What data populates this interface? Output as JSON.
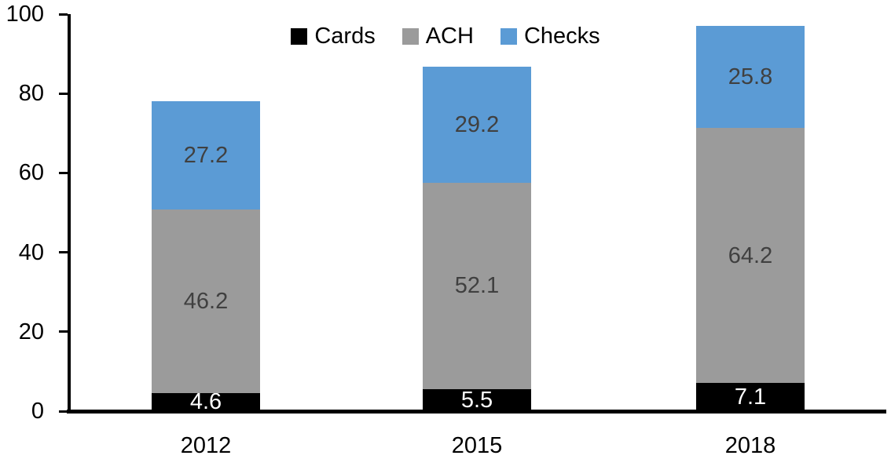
{
  "chart_data": {
    "type": "bar",
    "stacked": true,
    "title": "",
    "xlabel": "",
    "ylabel": "",
    "categories": [
      "2012",
      "2015",
      "2018"
    ],
    "series": [
      {
        "name": "Cards",
        "color": "#000000",
        "label_color": "#FFFFFF",
        "values": [
          4.6,
          5.5,
          7.1
        ]
      },
      {
        "name": "ACH",
        "color": "#9B9B9B",
        "label_color": "#404040",
        "values": [
          46.2,
          52.1,
          64.2
        ]
      },
      {
        "name": "Checks",
        "color": "#5B9BD5",
        "label_color": "#404040",
        "values": [
          27.2,
          29.2,
          25.8
        ]
      }
    ],
    "ylim": [
      0,
      100
    ],
    "yticks": [
      0,
      20,
      40,
      60,
      80,
      100
    ],
    "grid": false,
    "legend_position": "top",
    "axis_color": "#000000",
    "background_color": "#FFFFFF"
  }
}
